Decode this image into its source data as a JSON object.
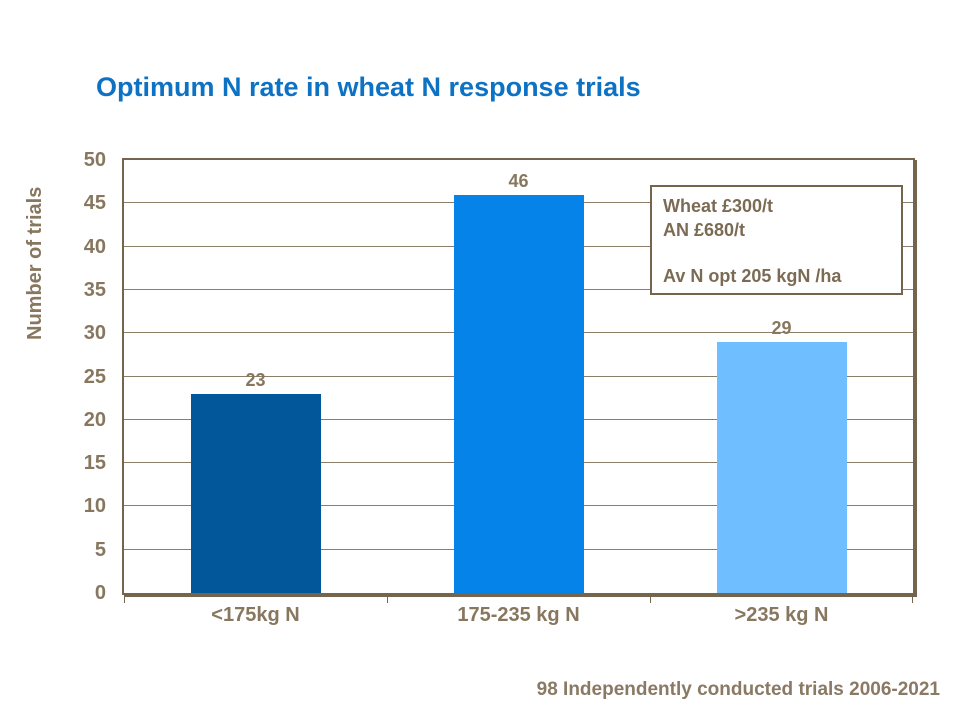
{
  "slide": {
    "title": "Optimum N rate in wheat N response trials",
    "title_color": "#0e72c4",
    "footer": "98 Independently conducted trials 2006-2021",
    "text_color": "#87775f",
    "border_color": "#76654d"
  },
  "chart_data": {
    "type": "bar",
    "title": "Optimum N rate in wheat N response trials",
    "categories": [
      "<175kg N",
      "175-235 kg N",
      ">235 kg N"
    ],
    "values": [
      23,
      46,
      29
    ],
    "data_labels": [
      "23",
      "46",
      "29"
    ],
    "bar_colors": [
      "#02569a",
      "#0583e8",
      "#6fbeff"
    ],
    "xlabel": "",
    "ylabel": "Number of trials",
    "ylim": [
      0,
      50
    ],
    "ytick_step": 5,
    "yticks": [
      0,
      5,
      10,
      15,
      20,
      25,
      30,
      35,
      40,
      45,
      50
    ],
    "grid": true,
    "gridline_color": "#8c7d69",
    "legend": false,
    "annotation_lines": [
      "Wheat £300/t",
      "AN £680/t",
      "",
      "Av N opt 205 kgN /ha"
    ]
  }
}
